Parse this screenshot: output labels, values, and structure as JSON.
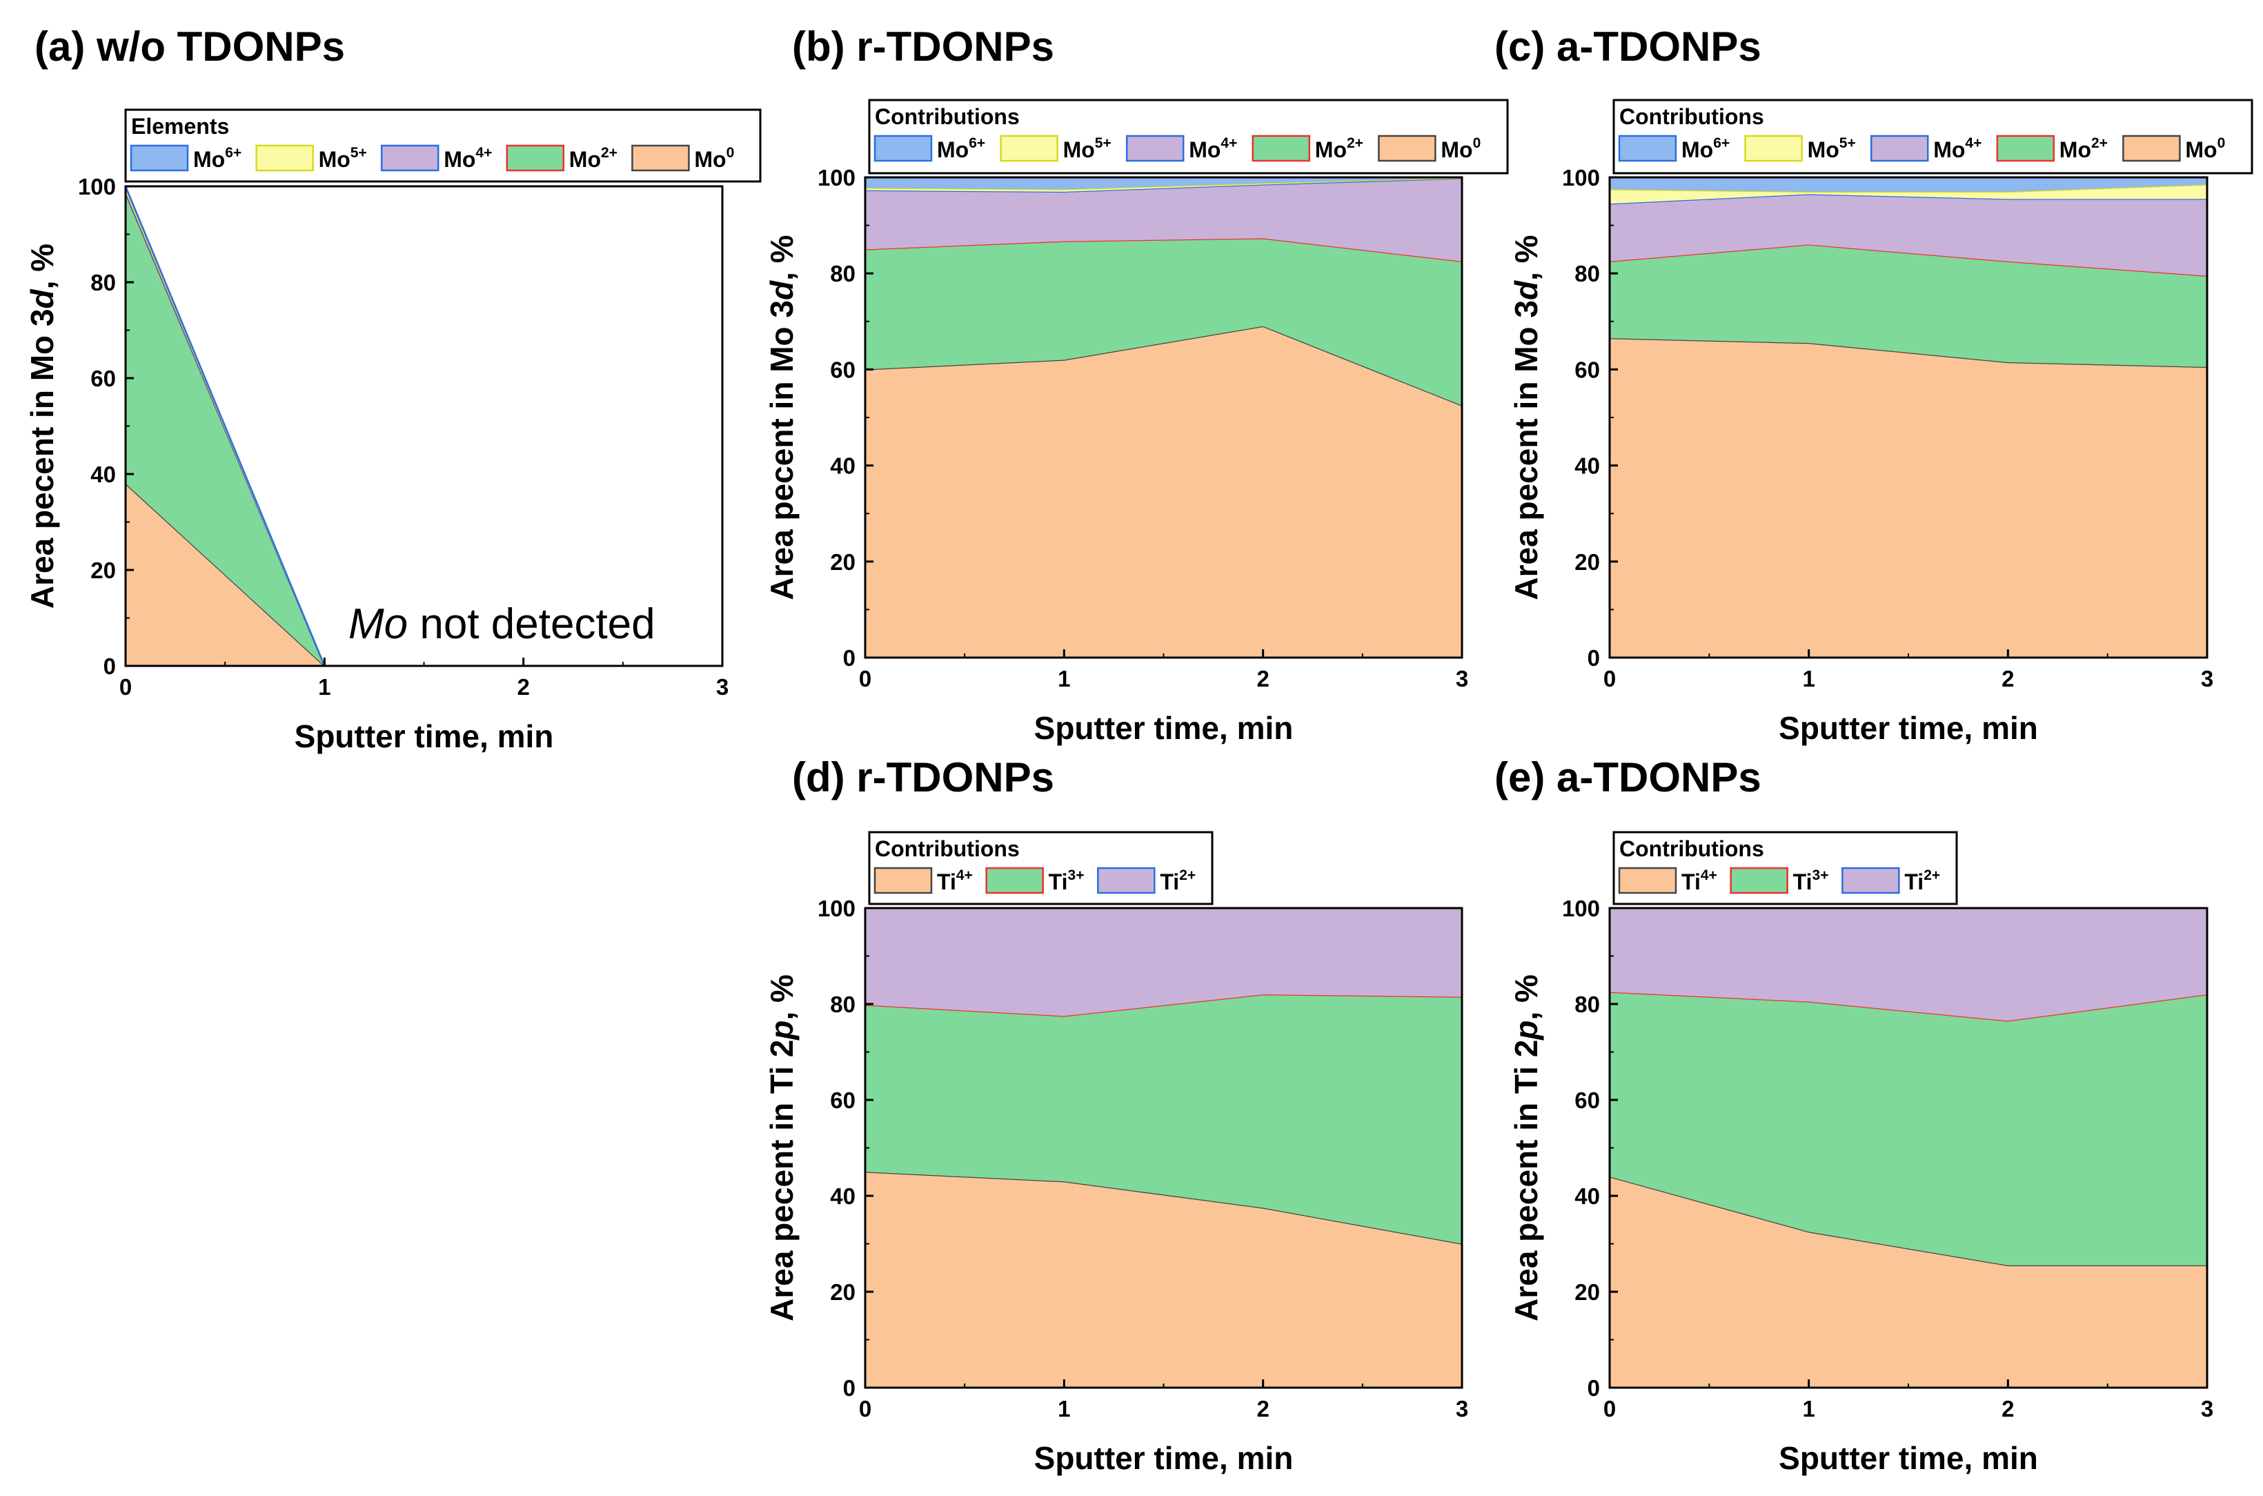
{
  "colors": {
    "Mo6+": "#8fb7f0",
    "Mo5+": "#fbfba6",
    "Mo4+": "#c8b2d9",
    "Mo2+": "#7fd99a",
    "Mo0": "#fcc597",
    "Ti4+": "#fcc597",
    "Ti3+": "#7fd99a",
    "Ti2+": "#c8b2d9",
    "border_Mo6+": "#2a6fe0",
    "border_Mo5+": "#d8d820",
    "border_Mo4+": "#2a6fe0",
    "border_Mo2+": "#ee3030",
    "border_Mo0": "#444444",
    "border_Ti4+": "#444444",
    "border_Ti3+": "#ee3030",
    "border_Ti2+": "#2a6fe0"
  },
  "chart_data": [
    {
      "id": "a",
      "type": "area",
      "stacked": true,
      "title": "(a) w/o TDONPs",
      "xlabel": "Sputter time, min",
      "ylabel_prefix": "Area pecent in Mo 3",
      "ylabel_italic": "d",
      "ylabel_suffix": ", %",
      "xlim": [
        0,
        3
      ],
      "ylim": [
        0,
        100
      ],
      "xticks": [
        0,
        1,
        2,
        3
      ],
      "yticks": [
        0,
        20,
        40,
        60,
        80,
        100
      ],
      "legend_title": "Elements",
      "x": [
        0,
        1
      ],
      "series": [
        {
          "name": "Mo0",
          "base": "Mo",
          "sup": "0",
          "values": [
            38,
            0
          ]
        },
        {
          "name": "Mo2+",
          "base": "Mo",
          "sup": "2+",
          "values": [
            60.5,
            0
          ]
        },
        {
          "name": "Mo4+",
          "base": "Mo",
          "sup": "4+",
          "values": [
            0.3,
            0
          ]
        },
        {
          "name": "Mo5+",
          "base": "Mo",
          "sup": "5+",
          "values": [
            0.7,
            0
          ]
        },
        {
          "name": "Mo6+",
          "base": "Mo",
          "sup": "6+",
          "values": [
            0.5,
            0
          ]
        }
      ],
      "legend_order": [
        "Mo6+",
        "Mo5+",
        "Mo4+",
        "Mo2+",
        "Mo0"
      ],
      "annotation": {
        "italic": "Mo",
        "rest": " not detected"
      }
    },
    {
      "id": "b",
      "type": "area",
      "stacked": true,
      "title": "(b) r-TDONPs",
      "xlabel": "Sputter time, min",
      "ylabel_prefix": "Area pecent in Mo 3",
      "ylabel_italic": "d",
      "ylabel_suffix": ", %",
      "xlim": [
        0,
        3
      ],
      "ylim": [
        0,
        100
      ],
      "xticks": [
        0,
        1,
        2,
        3
      ],
      "yticks": [
        0,
        20,
        40,
        60,
        80,
        100
      ],
      "legend_title": "Contributions",
      "x": [
        0,
        1,
        2,
        3
      ],
      "series": [
        {
          "name": "Mo0",
          "base": "Mo",
          "sup": "0",
          "values": [
            60,
            62,
            69,
            52.5
          ]
        },
        {
          "name": "Mo2+",
          "base": "Mo",
          "sup": "2+",
          "values": [
            25,
            24.7,
            18.3,
            30
          ]
        },
        {
          "name": "Mo4+",
          "base": "Mo",
          "sup": "4+",
          "values": [
            12.3,
            10.3,
            11.2,
            17.3
          ]
        },
        {
          "name": "Mo5+",
          "base": "Mo",
          "sup": "5+",
          "values": [
            0.5,
            0.5,
            0.3,
            0.1
          ]
        },
        {
          "name": "Mo6+",
          "base": "Mo",
          "sup": "6+",
          "values": [
            2.2,
            2.5,
            1.2,
            0.1
          ]
        }
      ],
      "legend_order": [
        "Mo6+",
        "Mo5+",
        "Mo4+",
        "Mo2+",
        "Mo0"
      ]
    },
    {
      "id": "c",
      "type": "area",
      "stacked": true,
      "title": "(c) a-TDONPs",
      "xlabel": "Sputter time, min",
      "ylabel_prefix": "Area pecent in Mo 3",
      "ylabel_italic": "d",
      "ylabel_suffix": ", %",
      "xlim": [
        0,
        3
      ],
      "ylim": [
        0,
        100
      ],
      "xticks": [
        0,
        1,
        2,
        3
      ],
      "yticks": [
        0,
        20,
        40,
        60,
        80,
        100
      ],
      "legend_title": "Contributions",
      "x": [
        0,
        1,
        2,
        3
      ],
      "series": [
        {
          "name": "Mo0",
          "base": "Mo",
          "sup": "0",
          "values": [
            66.5,
            65.5,
            61.5,
            60.5
          ]
        },
        {
          "name": "Mo2+",
          "base": "Mo",
          "sup": "2+",
          "values": [
            16,
            20.5,
            21,
            19
          ]
        },
        {
          "name": "Mo4+",
          "base": "Mo",
          "sup": "4+",
          "values": [
            12,
            10.5,
            13,
            16
          ]
        },
        {
          "name": "Mo5+",
          "base": "Mo",
          "sup": "5+",
          "values": [
            3,
            0.5,
            1.5,
            3
          ]
        },
        {
          "name": "Mo6+",
          "base": "Mo",
          "sup": "6+",
          "values": [
            2.5,
            3,
            3,
            1.5
          ]
        }
      ],
      "legend_order": [
        "Mo6+",
        "Mo5+",
        "Mo4+",
        "Mo2+",
        "Mo0"
      ]
    },
    {
      "id": "d",
      "type": "area",
      "stacked": true,
      "title": "(d) r-TDONPs",
      "xlabel": "Sputter time, min",
      "ylabel_prefix": "Area pecent in Ti 2",
      "ylabel_italic": "p",
      "ylabel_suffix": ", %",
      "xlim": [
        0,
        3
      ],
      "ylim": [
        0,
        100
      ],
      "xticks": [
        0,
        1,
        2,
        3
      ],
      "yticks": [
        0,
        20,
        40,
        60,
        80,
        100
      ],
      "legend_title": "Contributions",
      "x": [
        0,
        1,
        2,
        3
      ],
      "series": [
        {
          "name": "Ti4+",
          "base": "Ti",
          "sup": "4+",
          "values": [
            45,
            43,
            37.5,
            30
          ]
        },
        {
          "name": "Ti3+",
          "base": "Ti",
          "sup": "3+",
          "values": [
            34.8,
            34.5,
            44.5,
            51.5
          ]
        },
        {
          "name": "Ti2+",
          "base": "Ti",
          "sup": "2+",
          "values": [
            20.2,
            22.5,
            18,
            18.5
          ]
        }
      ],
      "legend_order": [
        "Ti4+",
        "Ti3+",
        "Ti2+"
      ]
    },
    {
      "id": "e",
      "type": "area",
      "stacked": true,
      "title": "(e) a-TDONPs",
      "xlabel": "Sputter time, min",
      "ylabel_prefix": "Area pecent in Ti 2",
      "ylabel_italic": "p",
      "ylabel_suffix": ", %",
      "xlim": [
        0,
        3
      ],
      "ylim": [
        0,
        100
      ],
      "xticks": [
        0,
        1,
        2,
        3
      ],
      "yticks": [
        0,
        20,
        40,
        60,
        80,
        100
      ],
      "legend_title": "Contributions",
      "x": [
        0,
        1,
        2,
        3
      ],
      "series": [
        {
          "name": "Ti4+",
          "base": "Ti",
          "sup": "4+",
          "values": [
            44,
            32.5,
            25.5,
            25.5
          ]
        },
        {
          "name": "Ti3+",
          "base": "Ti",
          "sup": "3+",
          "values": [
            38.5,
            48,
            51,
            56.5
          ]
        },
        {
          "name": "Ti2+",
          "base": "Ti",
          "sup": "2+",
          "values": [
            17.5,
            19.5,
            23.5,
            18
          ]
        }
      ],
      "legend_order": [
        "Ti4+",
        "Ti3+",
        "Ti2+"
      ]
    }
  ]
}
